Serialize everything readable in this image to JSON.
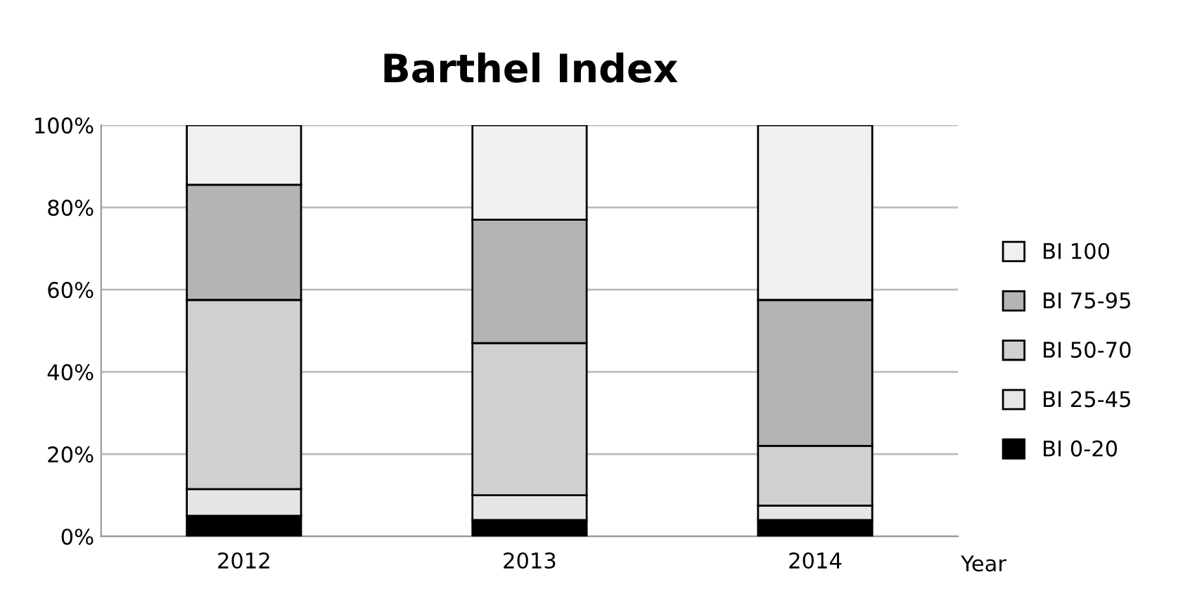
{
  "chart_data": {
    "type": "bar",
    "title": "Barthel Index",
    "xlabel": "Year",
    "categories": [
      "2012",
      "2013",
      "2014"
    ],
    "stacked": true,
    "series": [
      {
        "name": "BI 0-20",
        "color": "#000000",
        "values": [
          5,
          4,
          4
        ]
      },
      {
        "name": "BI 25-45",
        "color": "#e6e6e6",
        "values": [
          6.5,
          6,
          3.5
        ]
      },
      {
        "name": "BI 50-70",
        "color": "#d0d0d0",
        "values": [
          46,
          37,
          14.5
        ]
      },
      {
        "name": "BI 75-95",
        "color": "#b4b4b4",
        "values": [
          28,
          30,
          35.5
        ]
      },
      {
        "name": "BI 100",
        "color": "#f0f0f0",
        "values": [
          14.5,
          23,
          42.5
        ]
      }
    ],
    "ylim": [
      0,
      100
    ],
    "yticks": [
      {
        "value": 0,
        "label": "0%"
      },
      {
        "value": 20,
        "label": "20%"
      },
      {
        "value": 40,
        "label": "40%"
      },
      {
        "value": 60,
        "label": "60%"
      },
      {
        "value": 80,
        "label": "80%"
      },
      {
        "value": 100,
        "label": "100%"
      }
    ],
    "grid": "y",
    "legend": "right"
  }
}
